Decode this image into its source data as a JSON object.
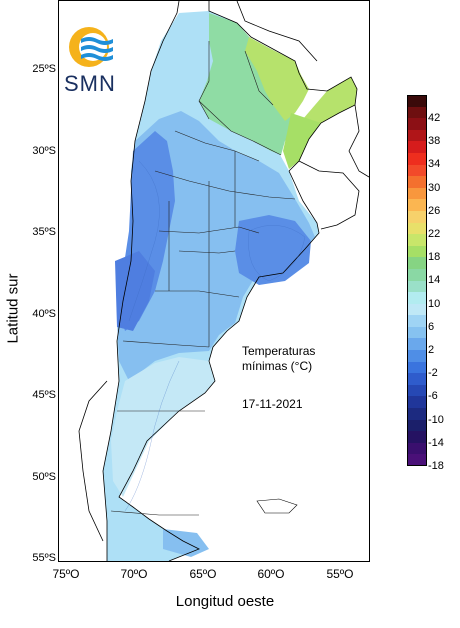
{
  "logo": {
    "text": "SMN",
    "icon": "smn-logo-icon"
  },
  "axes": {
    "ylabel": "Latitud sur",
    "xlabel": "Longitud oeste",
    "yticks": [
      "25ºS",
      "30ºS",
      "35ºS",
      "40ºS",
      "45ºS",
      "50ºS",
      "55ºS"
    ],
    "xticks": [
      "75ºO",
      "70ºO",
      "65ºO",
      "60ºO",
      "55ºO"
    ]
  },
  "title": {
    "line1": "Temperaturas",
    "line2": "mínimas (°C)",
    "date": "17-11-2021"
  },
  "legend": {
    "labels": [
      "42",
      "38",
      "34",
      "30",
      "26",
      "22",
      "18",
      "14",
      "10",
      "6",
      "2",
      "-2",
      "-6",
      "-10",
      "-14",
      "-18"
    ],
    "colors": [
      "#3a0a0a",
      "#6e0f10",
      "#8c1015",
      "#b01518",
      "#d61c1c",
      "#ee2e1e",
      "#f24a2a",
      "#f4702e",
      "#f8973d",
      "#fbb651",
      "#f6d16b",
      "#e8e06a",
      "#c8e66a",
      "#a6df66",
      "#86d483",
      "#8ad8a4",
      "#9ae0c8",
      "#b2ecf0",
      "#bfe8f6",
      "#9fd4f4",
      "#86c2f0",
      "#6aa8ec",
      "#4f8ee6",
      "#3a74de",
      "#2f5ccc",
      "#2648b4",
      "#20369a",
      "#1c2a80",
      "#1b1f6a",
      "#251262",
      "#3a0f6e",
      "#4a1078"
    ]
  },
  "map_colors": {
    "ocean": "#ffffff",
    "cold": "#5a8ee6",
    "cool": "#86bff0",
    "mild": "#aee0f6",
    "warm": "#8fdca4",
    "hot": "#b6e26c"
  }
}
